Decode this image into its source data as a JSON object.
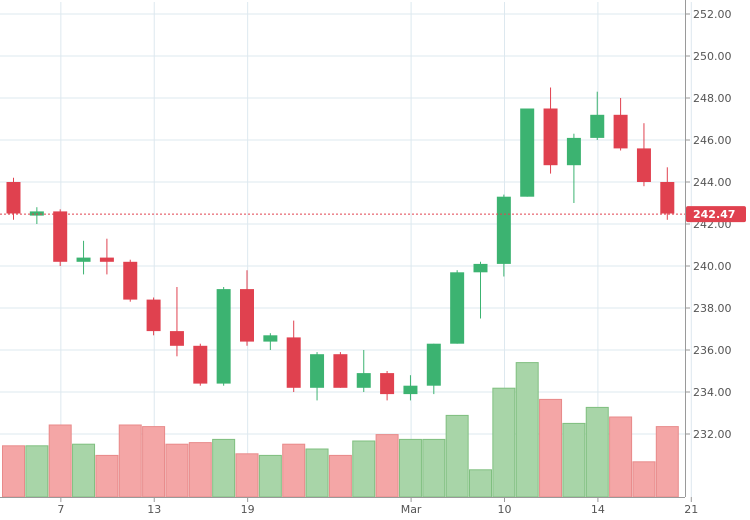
{
  "chart_data": {
    "type": "candlestick",
    "y_axis": {
      "min": 230,
      "max": 252,
      "ticks": [
        "252.00",
        "250.00",
        "248.00",
        "246.00",
        "244.00",
        "242.00",
        "240.00",
        "238.00",
        "236.00",
        "234.00",
        "232.00"
      ],
      "position": "right"
    },
    "x_axis": {
      "tick_labels": [
        "7",
        "13",
        "19",
        "Mar",
        "10",
        "14",
        "21"
      ]
    },
    "grid": true,
    "last_price": {
      "value": 242.47,
      "label": "242.47"
    },
    "colors": {
      "up": "#3cb371",
      "down": "#e0414f",
      "up_volume": "#a8d5a8",
      "down_volume": "#f4a6a6",
      "grid": "#dde8ef"
    },
    "candles": [
      {
        "open": 244.0,
        "high": 244.2,
        "low": 242.2,
        "close": 242.5,
        "volume": 0.32
      },
      {
        "open": 242.4,
        "high": 242.8,
        "low": 242.0,
        "close": 242.6,
        "volume": 0.32
      },
      {
        "open": 242.6,
        "high": 242.7,
        "low": 240.0,
        "close": 240.2,
        "volume": 0.45
      },
      {
        "open": 240.2,
        "high": 241.2,
        "low": 239.6,
        "close": 240.4,
        "volume": 0.33
      },
      {
        "open": 240.4,
        "high": 241.3,
        "low": 239.6,
        "close": 240.2,
        "volume": 0.26
      },
      {
        "open": 240.2,
        "high": 240.3,
        "low": 238.3,
        "close": 238.4,
        "volume": 0.45
      },
      {
        "open": 238.4,
        "high": 238.5,
        "low": 236.7,
        "close": 236.9,
        "volume": 0.44
      },
      {
        "open": 236.9,
        "high": 239.0,
        "low": 235.7,
        "close": 236.2,
        "volume": 0.33
      },
      {
        "open": 236.2,
        "high": 236.3,
        "low": 234.3,
        "close": 234.4,
        "volume": 0.34
      },
      {
        "open": 234.4,
        "high": 239.0,
        "low": 234.3,
        "close": 238.9,
        "volume": 0.36
      },
      {
        "open": 238.9,
        "high": 239.8,
        "low": 236.2,
        "close": 236.4,
        "volume": 0.27
      },
      {
        "open": 236.4,
        "high": 236.8,
        "low": 236.0,
        "close": 236.7,
        "volume": 0.26
      },
      {
        "open": 236.6,
        "high": 237.4,
        "low": 234.0,
        "close": 234.2,
        "volume": 0.33
      },
      {
        "open": 234.2,
        "high": 235.9,
        "low": 233.6,
        "close": 235.8,
        "volume": 0.3
      },
      {
        "open": 235.8,
        "high": 235.9,
        "low": 234.2,
        "close": 234.2,
        "volume": 0.26
      },
      {
        "open": 234.2,
        "high": 236.0,
        "low": 234.0,
        "close": 234.9,
        "volume": 0.35
      },
      {
        "open": 234.9,
        "high": 235.0,
        "low": 233.6,
        "close": 233.9,
        "volume": 0.39
      },
      {
        "open": 233.9,
        "high": 234.8,
        "low": 233.6,
        "close": 234.3,
        "volume": 0.36
      },
      {
        "open": 234.3,
        "high": 236.3,
        "low": 233.9,
        "close": 236.3,
        "volume": 0.36
      },
      {
        "open": 236.3,
        "high": 239.8,
        "low": 236.3,
        "close": 239.7,
        "volume": 0.51
      },
      {
        "open": 239.7,
        "high": 240.2,
        "low": 237.5,
        "close": 240.1,
        "volume": 0.17
      },
      {
        "open": 240.1,
        "high": 243.4,
        "low": 239.5,
        "close": 243.3,
        "volume": 0.68
      },
      {
        "open": 243.3,
        "high": 247.5,
        "low": 243.3,
        "close": 247.5,
        "volume": 0.84
      },
      {
        "open": 247.5,
        "high": 248.5,
        "low": 244.4,
        "close": 244.8,
        "volume": 0.61
      },
      {
        "open": 244.8,
        "high": 246.3,
        "low": 243.0,
        "close": 246.1,
        "volume": 0.46
      },
      {
        "open": 246.1,
        "high": 248.3,
        "low": 246.0,
        "close": 247.2,
        "volume": 0.56
      },
      {
        "open": 247.2,
        "high": 248.0,
        "low": 245.5,
        "close": 245.6,
        "volume": 0.5
      },
      {
        "open": 245.6,
        "high": 246.8,
        "low": 243.8,
        "close": 244.0,
        "volume": 0.22
      },
      {
        "open": 244.0,
        "high": 244.7,
        "low": 242.2,
        "close": 242.5,
        "volume": 0.44
      }
    ]
  }
}
